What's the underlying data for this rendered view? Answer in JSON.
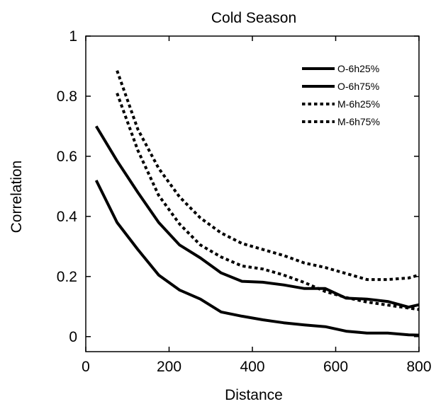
{
  "chart_data": {
    "type": "line",
    "title": "Cold Season",
    "xlabel": "Distance",
    "ylabel": "Correlation",
    "xlim": [
      0,
      800
    ],
    "ylim": [
      -0.05,
      1.0
    ],
    "xticks": [
      0,
      200,
      400,
      600,
      800
    ],
    "yticks": [
      0,
      0.2,
      0.4,
      0.6,
      0.8,
      1
    ],
    "xtick_labels": [
      "0",
      "200",
      "400",
      "600",
      "800"
    ],
    "ytick_labels": [
      "0",
      "0.2",
      "0.4",
      "0.6",
      "0.8",
      "1"
    ],
    "grid": false,
    "legend_position": "top-right",
    "series": [
      {
        "name": "O-6h25%",
        "style": "solid",
        "color": "#000000",
        "x": [
          25,
          75,
          125,
          175,
          225,
          275,
          325,
          375,
          425,
          475,
          525,
          575,
          625,
          675,
          725,
          775,
          800
        ],
        "y": [
          0.52,
          0.38,
          0.29,
          0.205,
          0.155,
          0.125,
          0.082,
          0.068,
          0.056,
          0.046,
          0.039,
          0.033,
          0.018,
          0.012,
          0.012,
          0.006,
          0.005
        ]
      },
      {
        "name": "O-6h75%",
        "style": "solid",
        "color": "#000000",
        "x": [
          25,
          75,
          125,
          175,
          225,
          275,
          325,
          375,
          425,
          475,
          525,
          575,
          625,
          675,
          725,
          775,
          800
        ],
        "y": [
          0.7,
          0.585,
          0.48,
          0.38,
          0.305,
          0.262,
          0.212,
          0.184,
          0.181,
          0.172,
          0.16,
          0.16,
          0.128,
          0.125,
          0.117,
          0.098,
          0.106
        ]
      },
      {
        "name": "M-6h25%",
        "style": "dotted",
        "color": "#000000",
        "x": [
          75,
          125,
          175,
          225,
          275,
          325,
          375,
          425,
          475,
          525,
          575,
          625,
          675,
          725,
          775,
          800
        ],
        "y": [
          0.81,
          0.62,
          0.47,
          0.375,
          0.305,
          0.265,
          0.235,
          0.225,
          0.205,
          0.18,
          0.15,
          0.13,
          0.115,
          0.105,
          0.095,
          0.09
        ]
      },
      {
        "name": "M-6h75%",
        "style": "dotted",
        "color": "#000000",
        "x": [
          75,
          125,
          175,
          225,
          275,
          325,
          375,
          425,
          475,
          525,
          575,
          625,
          675,
          725,
          775,
          800
        ],
        "y": [
          0.885,
          0.69,
          0.56,
          0.465,
          0.395,
          0.345,
          0.31,
          0.29,
          0.27,
          0.245,
          0.23,
          0.21,
          0.19,
          0.19,
          0.195,
          0.205
        ]
      }
    ]
  }
}
